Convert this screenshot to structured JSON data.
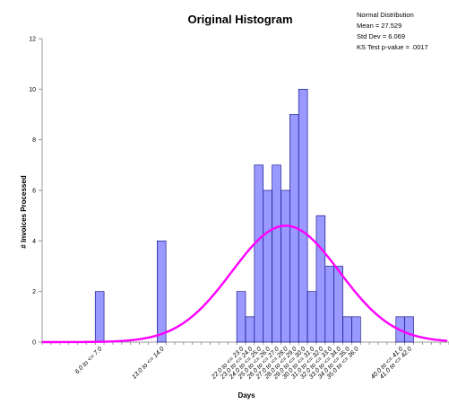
{
  "chart_data": {
    "type": "bar",
    "title": "Original Histogram",
    "xlabel": "Days",
    "ylabel": "# Invoices Processed",
    "ylim": [
      0,
      12
    ],
    "yticks": [
      0,
      2,
      4,
      6,
      8,
      10,
      12
    ],
    "xlim": [
      0,
      46
    ],
    "grid": false,
    "stats_box": {
      "line1": "Normal Distribution",
      "line2": "Mean = 27.529",
      "line3": "Std Dev = 6.069",
      "line4": "KS Test p-value = .0017"
    },
    "bars": [
      {
        "start": 6,
        "value": 2
      },
      {
        "start": 13,
        "value": 4
      },
      {
        "start": 22,
        "value": 2
      },
      {
        "start": 23,
        "value": 1
      },
      {
        "start": 24,
        "value": 7
      },
      {
        "start": 25,
        "value": 6
      },
      {
        "start": 26,
        "value": 7
      },
      {
        "start": 27,
        "value": 6
      },
      {
        "start": 28,
        "value": 9
      },
      {
        "start": 29,
        "value": 10
      },
      {
        "start": 30,
        "value": 2
      },
      {
        "start": 31,
        "value": 5
      },
      {
        "start": 32,
        "value": 3
      },
      {
        "start": 33,
        "value": 3
      },
      {
        "start": 34,
        "value": 1
      },
      {
        "start": 35,
        "value": 1
      },
      {
        "start": 40,
        "value": 1
      },
      {
        "start": 41,
        "value": 1
      }
    ],
    "tick_labels": [
      {
        "x": 6.5,
        "label": "6.0 to <= 7.0"
      },
      {
        "x": 13.5,
        "label": "13.0 to <= 14.0"
      },
      {
        "x": 22.5,
        "label": "22.0 to <= 23.0"
      },
      {
        "x": 23.5,
        "label": "23.0 to <= 24.0"
      },
      {
        "x": 24.5,
        "label": "24.0 to <= 25.0"
      },
      {
        "x": 25.5,
        "label": "25.0 to <= 26.0"
      },
      {
        "x": 26.5,
        "label": "26.0 to <= 27.0"
      },
      {
        "x": 27.5,
        "label": "27.0 to <= 28.0"
      },
      {
        "x": 28.5,
        "label": "28.0 to <= 29.0"
      },
      {
        "x": 29.5,
        "label": "29.0 to <= 30.0"
      },
      {
        "x": 30.5,
        "label": "30.0 to <= 31.0"
      },
      {
        "x": 31.5,
        "label": "31.0 to <= 32.0"
      },
      {
        "x": 32.5,
        "label": "32.0 to <= 33.0"
      },
      {
        "x": 33.5,
        "label": "33.0 to <= 34.0"
      },
      {
        "x": 34.5,
        "label": "34.0 to <= 35.0"
      },
      {
        "x": 35.5,
        "label": "35.0 to <= 36.0"
      },
      {
        "x": 40.5,
        "label": "40.0 to <= 41.0"
      },
      {
        "x": 41.5,
        "label": "41.0 to <= 42.0"
      }
    ],
    "curve": {
      "type": "normal",
      "mean": 27.529,
      "std": 6.069,
      "peak_count": 4.6
    },
    "colors": {
      "bar_fill": "#9999ff",
      "bar_stroke": "#000080",
      "curve": "#ff00ff"
    }
  }
}
